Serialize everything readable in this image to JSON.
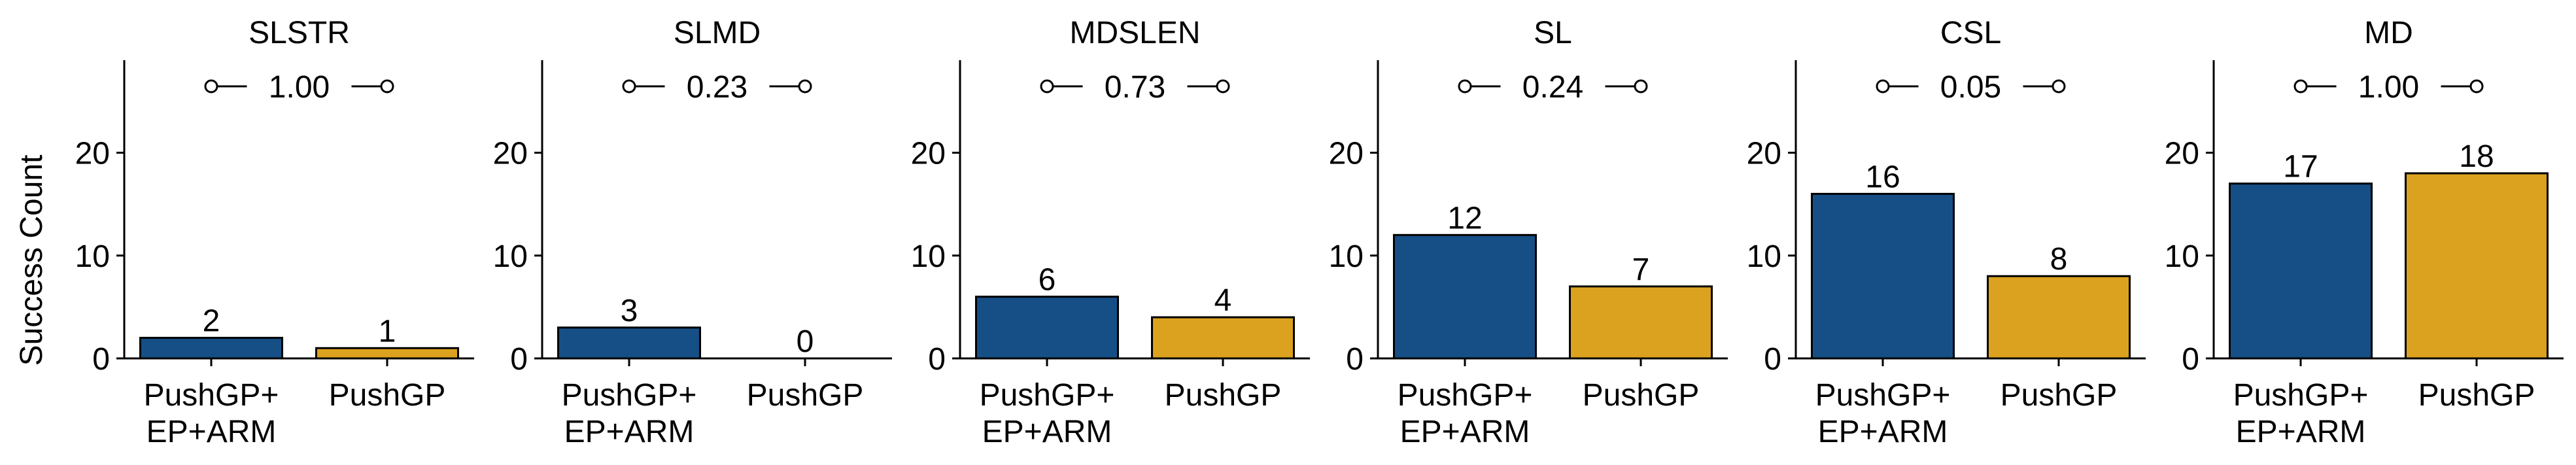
{
  "figure": {
    "ylabel": "Success Count"
  },
  "colors": {
    "PushGP+EP+ARM": "#164f86",
    "PushGP": "#dba21f"
  },
  "chart_data": [
    {
      "type": "bar",
      "title": "SLSTR",
      "categories": [
        "PushGP+\nEP+ARM",
        "PushGP"
      ],
      "values": [
        2,
        1
      ],
      "ylim": [
        0,
        29
      ],
      "yticks": [
        0,
        10,
        20
      ],
      "p_value": "1.00",
      "ylabel": "Success Count"
    },
    {
      "type": "bar",
      "title": "SLMD",
      "categories": [
        "PushGP+\nEP+ARM",
        "PushGP"
      ],
      "values": [
        3,
        0
      ],
      "ylim": [
        0,
        29
      ],
      "yticks": [
        0,
        10,
        20
      ],
      "p_value": "0.23"
    },
    {
      "type": "bar",
      "title": "MDSLEN",
      "categories": [
        "PushGP+\nEP+ARM",
        "PushGP"
      ],
      "values": [
        6,
        4
      ],
      "ylim": [
        0,
        29
      ],
      "yticks": [
        0,
        10,
        20
      ],
      "p_value": "0.73"
    },
    {
      "type": "bar",
      "title": "SL",
      "categories": [
        "PushGP+\nEP+ARM",
        "PushGP"
      ],
      "values": [
        12,
        7
      ],
      "ylim": [
        0,
        29
      ],
      "yticks": [
        0,
        10,
        20
      ],
      "p_value": "0.24"
    },
    {
      "type": "bar",
      "title": "CSL",
      "categories": [
        "PushGP+\nEP+ARM",
        "PushGP"
      ],
      "values": [
        16,
        8
      ],
      "ylim": [
        0,
        29
      ],
      "yticks": [
        0,
        10,
        20
      ],
      "p_value": "0.05"
    },
    {
      "type": "bar",
      "title": "MD",
      "categories": [
        "PushGP+\nEP+ARM",
        "PushGP"
      ],
      "values": [
        17,
        18
      ],
      "ylim": [
        0,
        29
      ],
      "yticks": [
        0,
        10,
        20
      ],
      "p_value": "1.00"
    }
  ]
}
